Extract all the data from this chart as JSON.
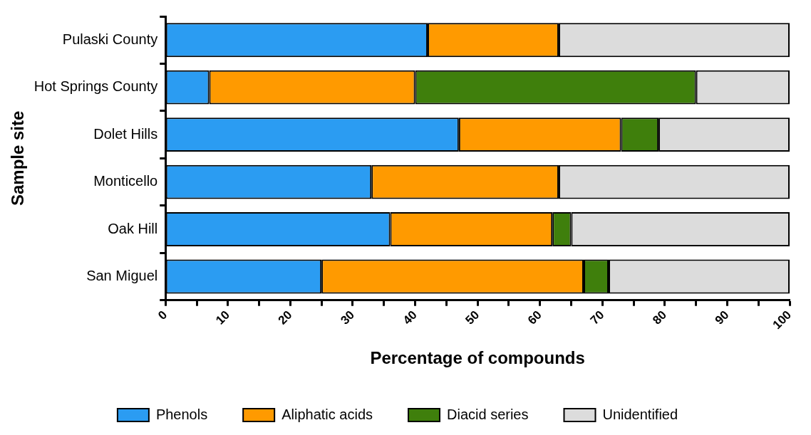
{
  "chart_data": {
    "type": "bar",
    "orientation": "horizontal",
    "stacked": true,
    "xlabel": "Percentage of compounds",
    "ylabel": "Sample site",
    "categories": [
      "Pulaski County",
      "Hot Springs County",
      "Dolet Hills",
      "Monticello",
      "Oak Hill",
      "San Miguel"
    ],
    "series": [
      {
        "name": "Phenols",
        "color": "#2b9cf2",
        "values": [
          42,
          7,
          47,
          33,
          36,
          25
        ]
      },
      {
        "name": "Aliphatic acids",
        "color": "#ff9a00",
        "values": [
          21,
          33,
          26,
          30,
          26,
          42
        ]
      },
      {
        "name": "Diacid series",
        "color": "#3f7f0c",
        "values": [
          null,
          45,
          6,
          null,
          3,
          4
        ]
      },
      {
        "name": "Unidentified",
        "color": "#dcdcdc",
        "values": [
          37,
          15,
          21,
          37,
          35,
          29
        ]
      }
    ],
    "xlim": [
      0,
      100
    ],
    "xticks": [
      0,
      {
        "value": 5,
        "label": null
      },
      10,
      {
        "value": 15,
        "label": null
      },
      20,
      {
        "value": 25,
        "label": null
      },
      30,
      {
        "value": 35,
        "label": null
      },
      40,
      {
        "value": 45,
        "label": null
      },
      50,
      {
        "value": 55,
        "label": null
      },
      60,
      {
        "value": 65,
        "label": null
      },
      70,
      {
        "value": 75,
        "label": null
      },
      80,
      {
        "value": 85,
        "label": null
      },
      90,
      {
        "value": 95,
        "label": null
      },
      100
    ],
    "grid": false,
    "legend": "bottom"
  }
}
